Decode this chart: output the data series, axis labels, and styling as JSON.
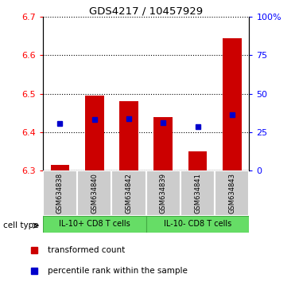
{
  "title": "GDS4217 / 10457929",
  "samples": [
    "GSM634838",
    "GSM634840",
    "GSM634842",
    "GSM634839",
    "GSM634841",
    "GSM634843"
  ],
  "red_values": [
    6.315,
    6.495,
    6.48,
    6.44,
    6.35,
    6.645
  ],
  "blue_values": [
    6.422,
    6.433,
    6.435,
    6.425,
    6.415,
    6.445
  ],
  "ylim": [
    6.3,
    6.7
  ],
  "yticks_left": [
    6.3,
    6.4,
    6.5,
    6.6,
    6.7
  ],
  "yticks_right": [
    0,
    25,
    50,
    75,
    100
  ],
  "group1_label": "IL-10+ CD8 T cells",
  "group2_label": "IL-10- CD8 T cells",
  "group1_indices": [
    0,
    1,
    2
  ],
  "group2_indices": [
    3,
    4,
    5
  ],
  "cell_type_label": "cell type",
  "legend_red": "transformed count",
  "legend_blue": "percentile rank within the sample",
  "bar_color": "#cc0000",
  "blue_color": "#0000cc",
  "green_fill": "#66dd66",
  "gray_fill": "#cccccc",
  "bar_width": 0.55,
  "base_value": 6.3,
  "fig_width": 3.71,
  "fig_height": 3.54,
  "dpi": 100
}
